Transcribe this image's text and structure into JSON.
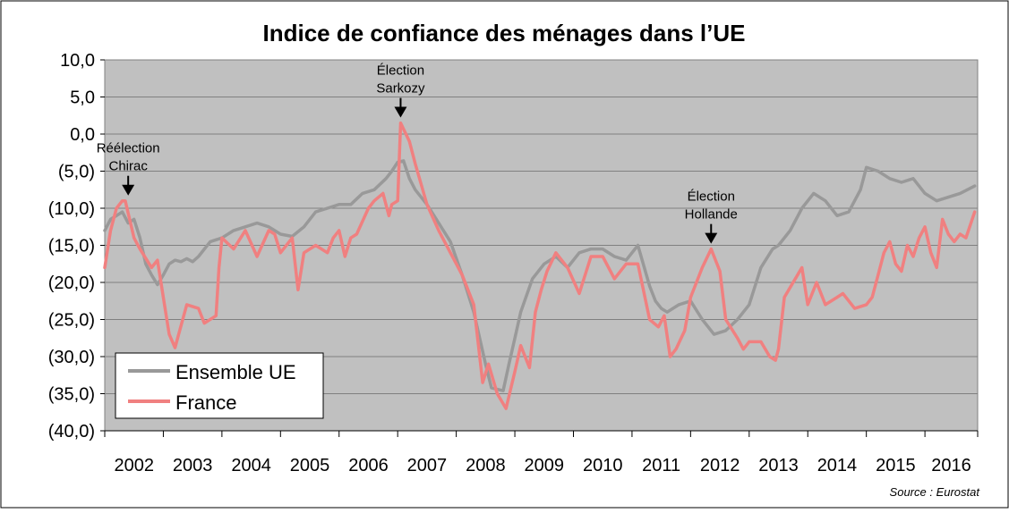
{
  "chart_data": {
    "type": "line",
    "title": "Indice de confiance des ménages dans l’UE",
    "source": "Source : Eurostat",
    "ylim": [
      -40,
      10
    ],
    "yticks": [
      10,
      5,
      0,
      -5,
      -10,
      -15,
      -20,
      -25,
      -30,
      -35,
      -40
    ],
    "ytick_labels": [
      "10,0",
      "5,0",
      "0,0",
      "(5,0)",
      "(10,0)",
      "(15,0)",
      "(20,0)",
      "(25,0)",
      "(30,0)",
      "(35,0)",
      "(40,0)"
    ],
    "xlim": [
      2002,
      2016.9
    ],
    "year_labels": [
      "2002",
      "2003",
      "2004",
      "2005",
      "2006",
      "2007",
      "2008",
      "2009",
      "2010",
      "2011",
      "2012",
      "2013",
      "2014",
      "2015",
      "2016"
    ],
    "grid": true,
    "legend_position": "bottom-left",
    "series": [
      {
        "name": "Ensemble UE",
        "color": "#999999",
        "x": [
          2002.0,
          2002.1,
          2002.2,
          2002.3,
          2002.4,
          2002.5,
          2002.6,
          2002.7,
          2002.8,
          2002.9,
          2003.0,
          2003.1,
          2003.2,
          2003.3,
          2003.4,
          2003.5,
          2003.6,
          2003.8,
          2004.0,
          2004.2,
          2004.4,
          2004.6,
          2004.8,
          2005.0,
          2005.2,
          2005.4,
          2005.6,
          2005.8,
          2006.0,
          2006.2,
          2006.4,
          2006.6,
          2006.8,
          2006.9,
          2007.0,
          2007.1,
          2007.2,
          2007.3,
          2007.5,
          2007.7,
          2007.9,
          2008.1,
          2008.3,
          2008.5,
          2008.6,
          2008.8,
          2008.9,
          2009.0,
          2009.1,
          2009.3,
          2009.5,
          2009.7,
          2009.9,
          2010.1,
          2010.3,
          2010.5,
          2010.7,
          2010.9,
          2011.1,
          2011.3,
          2011.4,
          2011.5,
          2011.6,
          2011.8,
          2012.0,
          2012.2,
          2012.4,
          2012.6,
          2012.8,
          2013.0,
          2013.2,
          2013.4,
          2013.5,
          2013.7,
          2013.9,
          2014.1,
          2014.3,
          2014.5,
          2014.7,
          2014.9,
          2015.0,
          2015.2,
          2015.4,
          2015.6,
          2015.8,
          2016.0,
          2016.2,
          2016.4,
          2016.6,
          2016.85
        ],
        "values": [
          -13.0,
          -11.5,
          -11.0,
          -10.5,
          -12.0,
          -11.5,
          -14.0,
          -17.5,
          -19.0,
          -20.3,
          -19.0,
          -17.5,
          -17.0,
          -17.2,
          -16.8,
          -17.2,
          -16.5,
          -14.5,
          -14.0,
          -13.0,
          -12.5,
          -12.0,
          -12.5,
          -13.5,
          -13.8,
          -12.5,
          -10.5,
          -10.0,
          -9.5,
          -9.5,
          -8.0,
          -7.5,
          -6.0,
          -5.0,
          -3.8,
          -3.6,
          -6.0,
          -7.5,
          -9.5,
          -12.0,
          -14.5,
          -19.0,
          -24.0,
          -31.0,
          -34.2,
          -34.6,
          -31.0,
          -27.5,
          -24.0,
          -19.5,
          -17.5,
          -16.5,
          -18.0,
          -16.0,
          -15.5,
          -15.5,
          -16.5,
          -17.0,
          -15.0,
          -20.5,
          -22.5,
          -23.5,
          -24.0,
          -23.0,
          -22.5,
          -25.0,
          -27.0,
          -26.5,
          -25.0,
          -23.0,
          -18.0,
          -15.5,
          -15.0,
          -13.0,
          -10.0,
          -8.0,
          -9.0,
          -11.0,
          -10.5,
          -7.5,
          -4.5,
          -5.0,
          -6.0,
          -6.5,
          -6.0,
          -8.0,
          -9.0,
          -8.5,
          -8.0,
          -7.0
        ]
      },
      {
        "name": "France",
        "color": "#f08080",
        "x": [
          2002.0,
          2002.1,
          2002.2,
          2002.3,
          2002.35,
          2002.5,
          2002.6,
          2002.8,
          2002.9,
          2003.0,
          2003.1,
          2003.2,
          2003.4,
          2003.6,
          2003.7,
          2003.9,
          2003.95,
          2004.0,
          2004.2,
          2004.4,
          2004.6,
          2004.8,
          2004.9,
          2005.0,
          2005.2,
          2005.3,
          2005.4,
          2005.6,
          2005.8,
          2005.9,
          2006.0,
          2006.1,
          2006.2,
          2006.3,
          2006.5,
          2006.6,
          2006.75,
          2006.85,
          2006.9,
          2007.0,
          2007.05,
          2007.2,
          2007.3,
          2007.5,
          2007.7,
          2007.9,
          2008.1,
          2008.3,
          2008.45,
          2008.55,
          2008.7,
          2008.85,
          2009.0,
          2009.1,
          2009.25,
          2009.35,
          2009.45,
          2009.55,
          2009.7,
          2009.9,
          2010.1,
          2010.3,
          2010.5,
          2010.7,
          2010.9,
          2011.1,
          2011.3,
          2011.45,
          2011.55,
          2011.65,
          2011.75,
          2011.9,
          2012.0,
          2012.2,
          2012.35,
          2012.5,
          2012.6,
          2012.8,
          2012.9,
          2013.0,
          2013.2,
          2013.35,
          2013.45,
          2013.5,
          2013.6,
          2013.75,
          2013.9,
          2014.0,
          2014.05,
          2014.15,
          2014.3,
          2014.5,
          2014.6,
          2014.8,
          2015.0,
          2015.1,
          2015.2,
          2015.3,
          2015.4,
          2015.5,
          2015.6,
          2015.7,
          2015.8,
          2015.9,
          2016.0,
          2016.1,
          2016.2,
          2016.3,
          2016.4,
          2016.5,
          2016.6,
          2016.7,
          2016.85
        ],
        "values": [
          -18.0,
          -13.0,
          -10.0,
          -9.0,
          -9.0,
          -14.0,
          -15.5,
          -18.0,
          -17.0,
          -22.0,
          -27.0,
          -28.8,
          -23.0,
          -23.5,
          -25.5,
          -24.5,
          -18.0,
          -14.0,
          -15.5,
          -13.0,
          -16.5,
          -13.0,
          -13.5,
          -16.0,
          -14.0,
          -21.0,
          -16.0,
          -15.0,
          -16.0,
          -14.0,
          -13.0,
          -16.5,
          -14.0,
          -13.5,
          -10.0,
          -9.0,
          -8.0,
          -11.0,
          -9.5,
          -9.0,
          1.5,
          -1.0,
          -4.0,
          -9.5,
          -13.0,
          -16.0,
          -19.0,
          -23.0,
          -33.5,
          -31.0,
          -35.0,
          -37.0,
          -32.0,
          -28.5,
          -31.5,
          -24.0,
          -21.0,
          -18.5,
          -16.0,
          -18.0,
          -21.5,
          -16.5,
          -16.5,
          -19.5,
          -17.5,
          -17.5,
          -25.0,
          -26.0,
          -24.5,
          -30.0,
          -29.0,
          -26.5,
          -22.0,
          -18.0,
          -15.5,
          -18.5,
          -25.0,
          -27.5,
          -29.0,
          -28.0,
          -28.0,
          -30.0,
          -30.5,
          -29.0,
          -22.0,
          -20.0,
          -18.0,
          -23.0,
          -22.0,
          -20.0,
          -23.0,
          -22.0,
          -21.5,
          -23.5,
          -23.0,
          -22.0,
          -19.0,
          -16.0,
          -14.5,
          -17.5,
          -18.5,
          -15.0,
          -16.5,
          -14.0,
          -12.5,
          -16.0,
          -18.0,
          -11.5,
          -13.5,
          -14.5,
          -13.5,
          -14.0,
          -10.5
        ]
      }
    ],
    "annotations": [
      {
        "lines": [
          "Réélection",
          "Chirac"
        ],
        "x": 2002.4,
        "y": -9.0
      },
      {
        "lines": [
          "Élection",
          "Sarkozy"
        ],
        "x": 2007.05,
        "y": 1.5
      },
      {
        "lines": [
          "Élection",
          "Hollande"
        ],
        "x": 2012.35,
        "y": -15.5
      }
    ]
  }
}
